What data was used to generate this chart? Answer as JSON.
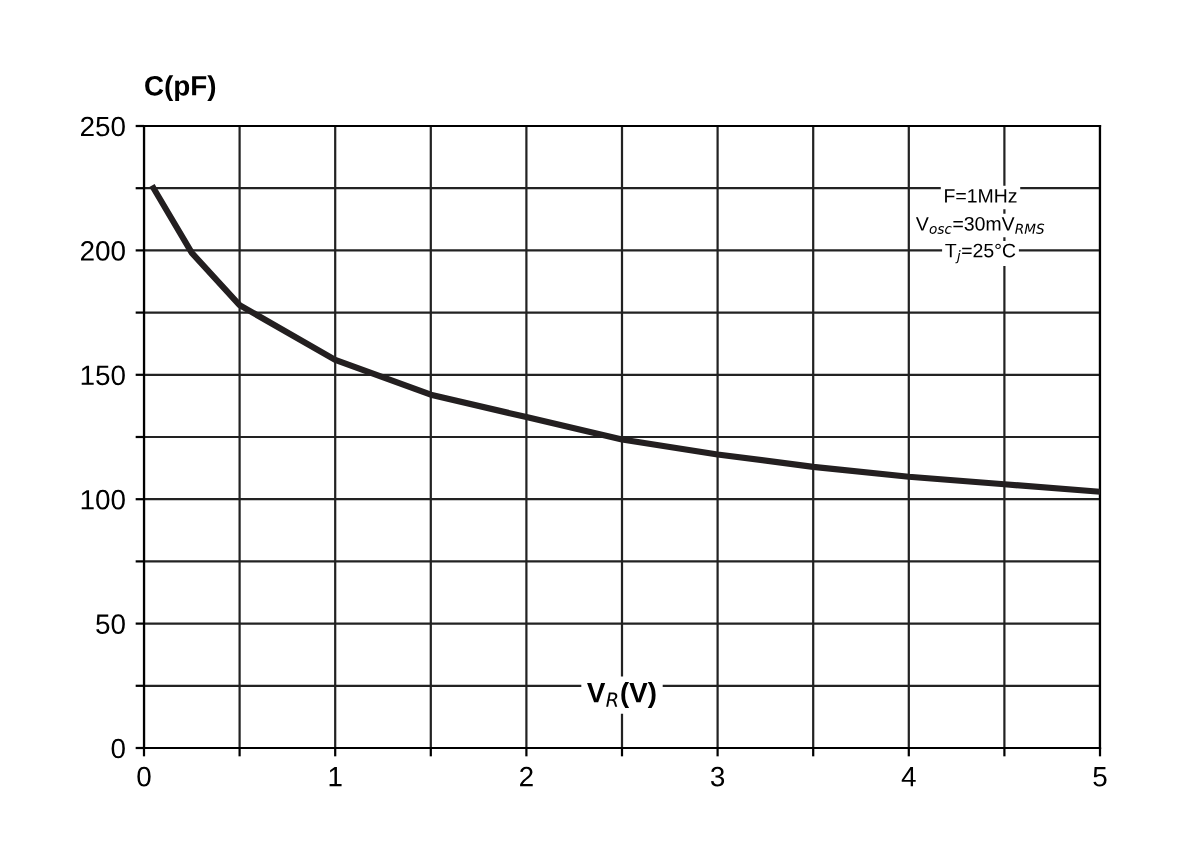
{
  "chart_data": {
    "type": "line",
    "xlabel": "V$_{R}$(V)",
    "ylabel": "C(pF)",
    "x": [
      0.05,
      0.25,
      0.5,
      1,
      1.5,
      2,
      2.5,
      3,
      3.5,
      4,
      4.5,
      5
    ],
    "series": [
      {
        "color": "#231f20",
        "values": [
          225,
          199,
          178,
          156,
          142,
          133,
          124,
          118,
          113,
          109,
          106,
          103
        ]
      }
    ],
    "xlim": [
      0,
      5
    ],
    "ylim": [
      0,
      250
    ],
    "xticks": [
      0,
      {
        "value": 0.5,
        "label": null
      },
      1,
      {
        "value": 1.5,
        "label": null
      },
      2,
      {
        "value": 2.5,
        "label": null
      },
      3,
      {
        "value": 3.5,
        "label": null
      },
      4,
      {
        "value": 4.5,
        "label": null
      },
      5
    ],
    "yticks": [
      0,
      {
        "value": 25,
        "label": null
      },
      50,
      {
        "value": 75,
        "label": null
      },
      100,
      {
        "value": 125,
        "label": null
      },
      150,
      {
        "value": 175,
        "label": null
      },
      200,
      {
        "value": 225,
        "label": null
      },
      250
    ],
    "grid": true,
    "marker": "none",
    "line_style": "solid",
    "legend": false,
    "annotations": [
      "F=1MHz",
      "V$_{osc}$=30mV$_{RMS}$",
      "T$_{j}$=25°C"
    ]
  }
}
